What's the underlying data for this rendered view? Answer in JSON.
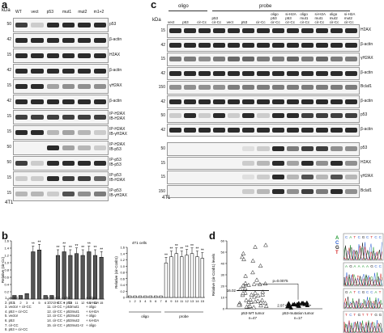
{
  "panel_a": {
    "letter": "a",
    "kda_label": "kDa",
    "cell_line": "4T1",
    "lanes": [
      "WT",
      "vect",
      "p53",
      "mut1",
      "mut2",
      "m1+2"
    ],
    "rows": [
      {
        "kda": "50",
        "label": "p53"
      },
      {
        "kda": "42",
        "label": "β-actin"
      },
      {
        "kda": "15",
        "label": "H2AX"
      },
      {
        "kda": "42",
        "label": "β-actin"
      },
      {
        "kda": "15",
        "label": "γH2AX"
      },
      {
        "kda": "42",
        "label": "β-actin"
      },
      {
        "kda": "15",
        "label": "IP-H2AX\nIB-H2AX"
      },
      {
        "kda": "15",
        "label": "IP-H2AX\nIB-γH2AX"
      },
      {
        "kda": "50",
        "label": "IP-H2AX\nIB-p53"
      },
      {
        "kda": "50",
        "label": "IP-p53\nIB-p53"
      },
      {
        "kda": "15",
        "label": "IP-p53\nIB-H2AX"
      },
      {
        "kda": "15",
        "label": "IP-p53\nIB-γH2AX"
      }
    ]
  },
  "panel_c": {
    "letter": "c",
    "kda_label": "kDa",
    "cell_line": "4T1",
    "group_oligo": "oligo",
    "group_probe": "probe",
    "lanes": [
      "vect",
      "p53",
      "cir-Cc",
      "p53\ncir-Cc",
      "vect",
      "p53",
      "cir-Cc",
      "oligo\np53\ncir-Cc",
      "si-H2A\np53\ncir-Cc",
      "oligo\nmut1\ncir-Cc",
      "si-H2A\nmut1\ncir-Cc",
      "oligo\nmut2\ncir-Cc",
      "si-H2A\nmut2\ncir-Cc"
    ],
    "rows": [
      {
        "kda": "15",
        "label": "H2AX"
      },
      {
        "kda": "42",
        "label": "β-actin"
      },
      {
        "kda": "15",
        "label": "γH2AX"
      },
      {
        "kda": "42",
        "label": "β-actin"
      },
      {
        "kda": "150",
        "label": "Bclaf1"
      },
      {
        "kda": "42",
        "label": "β-actin"
      },
      {
        "kda": "50",
        "label": "p53"
      },
      {
        "kda": "42",
        "label": "β-actin"
      },
      {
        "kda": "50",
        "label": "p53"
      },
      {
        "kda": "15",
        "label": "H2AX"
      },
      {
        "kda": "15",
        "label": "γH2AX"
      },
      {
        "kda": "150",
        "label": "Bclaf1"
      }
    ]
  },
  "panel_b": {
    "letter": "b",
    "legend_left": [
      "1. vector",
      "2. p53",
      "3. vector + cir-CC",
      "4. p53 + cir-CC",
      "5. vector",
      "6. p53",
      "7. cir-CC",
      "8. p53 + cir-CC"
    ],
    "legend_right": [
      "9. cir-CC + p53",
      "10. cir-CC + p53",
      "11. cir-CC + p53mut1",
      "12. cir-CC + p53mut1",
      "13. cir-CC + p53mut2",
      "14. cir-CC + p53mut2",
      "15. cir-CC + p53mut1+2"
    ],
    "legend_tags": [
      "+ oligo",
      "+ si-H2A",
      "+ oligo",
      "+ si-H2A",
      "+ oligo",
      "+ si-H2A",
      "+ oligo"
    ],
    "inset_label": "4T1 cells",
    "oligo_label": "oligo",
    "probe_label": "probe",
    "significance": "**"
  },
  "panel_d": {
    "letter": "d",
    "median_wt": "16.02",
    "median_mut": "2.97",
    "pvalue": "p=0.0075",
    "group_wt": "p53-WT tumor",
    "n_wt": "n=47",
    "group_mut": "p53-mutation tumor",
    "n_mut": "n=17",
    "ylabel": "Relative (cir-Ccnb1) levels",
    "nuc_labels": [
      "A",
      "C",
      "G",
      "T"
    ],
    "nuc_colors": [
      "#2a9d3a",
      "#2b5fd1",
      "#222222",
      "#d62828"
    ]
  },
  "chart_data": [
    {
      "type": "bar",
      "categories": [
        "1",
        "2",
        "3",
        "4",
        "5",
        "6",
        "7",
        "8",
        "9",
        "10",
        "11",
        "12",
        "13",
        "14",
        "15"
      ],
      "values": [
        0.1,
        0.1,
        0.15,
        1.3,
        1.35,
        0.1,
        0.1,
        1.2,
        1.3,
        1.2,
        1.25,
        1.2,
        1.3,
        1.2,
        1.15
      ],
      "ylabel": "Relative (cir-Cc)",
      "ylim": [
        0,
        1.6
      ],
      "yticks": [
        "0",
        "0.2",
        "0.4",
        "0.6",
        "0.8",
        "1.0",
        "1.2",
        "1.4",
        "1.6"
      ]
    },
    {
      "type": "bar",
      "categories": [
        "1",
        "2",
        "3",
        "4",
        "5",
        "6",
        "7",
        "8",
        "9",
        "10",
        "11",
        "12",
        "13",
        "14",
        "15"
      ],
      "values": [
        0.05,
        0.05,
        0.05,
        0.05,
        0.05,
        0.05,
        0.05,
        1.1,
        1.3,
        1.4,
        1.3,
        1.35,
        1.4,
        1.3,
        1.25
      ],
      "ylabel": "Relative (cir-Ccnb1)",
      "ylim": [
        0,
        1.6
      ],
      "yticks": [
        "0",
        "0.2",
        "0.4",
        "0.6",
        "0.8",
        "1.0",
        "1.2",
        "1.4",
        "1.6"
      ]
    },
    {
      "type": "scatter",
      "categories": [
        "p53-WT tumor",
        "p53-mutation tumor"
      ],
      "ylim": [
        0,
        60
      ],
      "yticks": [
        "0",
        "10",
        "20",
        "30",
        "40",
        "50",
        "60"
      ],
      "medians": [
        16.02,
        2.97
      ]
    }
  ]
}
